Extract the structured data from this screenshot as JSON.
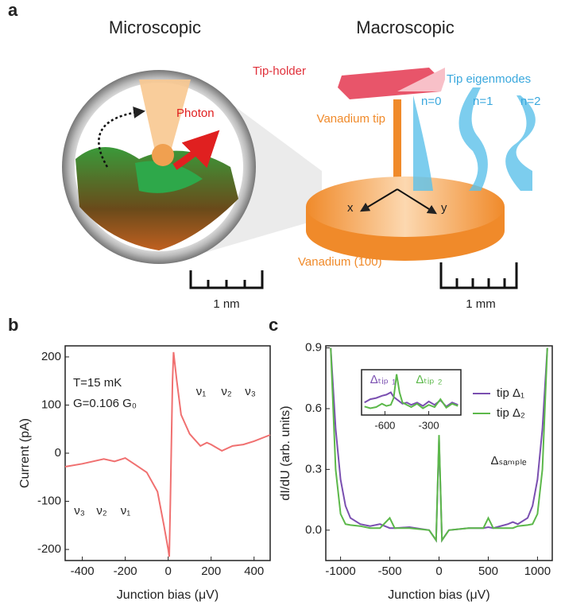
{
  "figure": {
    "panel_label": "a",
    "left_title": "Microscopic",
    "right_title": "Macroscopic",
    "tip_holder": "Tip-holder",
    "eigenmodes": "Tip eigenmodes",
    "modes": [
      "n=0",
      "n=1",
      "n=2"
    ],
    "tip": "Vanadium tip",
    "photon": "Photon",
    "axis_x": "x",
    "axis_y": "y",
    "sample": "Vanadium (100)",
    "scale_left": "1 nm",
    "scale_right": "1 mm"
  },
  "chart_data": [
    {
      "type": "line",
      "panel_label": "b",
      "xlabel": "Junction bias (μV)",
      "ylabel": "Current (pA)",
      "annotations": [
        "T=15 mK",
        "G=0.106 G₀",
        "ν₃",
        "ν₂",
        "ν₁",
        "ν₁",
        "ν₂",
        "ν₃"
      ],
      "xlim": [
        -480,
        475
      ],
      "ylim": [
        -223,
        223
      ],
      "xticks": [
        -400,
        -200,
        0,
        200,
        400
      ],
      "yticks": [
        -200,
        -100,
        0,
        100,
        200
      ],
      "x": [
        -480,
        -400,
        -300,
        -250,
        -200,
        -150,
        -100,
        -50,
        -20,
        0,
        5,
        10,
        20,
        25,
        40,
        60,
        100,
        150,
        180,
        200,
        250,
        300,
        350,
        400,
        475
      ],
      "values": [
        -28,
        -22,
        -12,
        -17,
        -10,
        -25,
        -40,
        -80,
        -150,
        -200,
        -215,
        -100,
        150,
        210,
        150,
        80,
        40,
        15,
        22,
        18,
        5,
        15,
        18,
        25,
        38
      ],
      "color": "#f07070"
    },
    {
      "type": "line",
      "panel_label": "c",
      "xlabel": "Junction bias (μV)",
      "ylabel": "dI/dU (arb. units)",
      "annotations": [
        "Δₛₐₘₚₗₑ"
      ],
      "legend": "upper right",
      "xlim": [
        -1150,
        1150
      ],
      "ylim": [
        -0.15,
        0.91
      ],
      "xticks": [
        -1000,
        -500,
        0,
        500,
        1000
      ],
      "yticks": [
        {
          "value": 0,
          "label": "0.0"
        },
        0.3,
        0.6,
        0.9
      ],
      "x": [
        -1100,
        -1050,
        -1000,
        -950,
        -900,
        -800,
        -700,
        -600,
        -500,
        -450,
        -300,
        -100,
        -30,
        0,
        30,
        100,
        300,
        450,
        500,
        550,
        700,
        750,
        800,
        900,
        950,
        1000,
        1050,
        1100
      ],
      "series": [
        {
          "name": "tip Δ₁",
          "color": "#7a4fb0",
          "values": [
            0.9,
            0.5,
            0.25,
            0.12,
            0.06,
            0.03,
            0.02,
            0.03,
            0.01,
            0.01,
            0.015,
            0.0,
            -0.05,
            0.45,
            -0.05,
            0.0,
            0.01,
            0.01,
            0.015,
            0.01,
            0.03,
            0.04,
            0.03,
            0.06,
            0.12,
            0.25,
            0.5,
            0.9
          ]
        },
        {
          "name": "tip Δ₂",
          "color": "#5cb84a",
          "values": [
            0.9,
            0.3,
            0.08,
            0.03,
            0.025,
            0.02,
            0.01,
            0.01,
            0.06,
            0.01,
            0.01,
            0.0,
            -0.05,
            0.47,
            -0.05,
            0.0,
            0.01,
            0.01,
            0.06,
            0.01,
            0.01,
            0.01,
            0.02,
            0.025,
            0.03,
            0.08,
            0.3,
            0.9
          ]
        }
      ]
    },
    {
      "type": "line",
      "annotations": [
        "Δₜᵢₚ ₁",
        "Δₜᵢₚ ₂"
      ],
      "xlim": [
        -760,
        -80
      ],
      "ylim": [
        -0.01,
        0.07
      ],
      "xticks": [
        -600,
        -300
      ],
      "x": [
        -740,
        -700,
        -660,
        -620,
        -590,
        -560,
        -540,
        -520,
        -500,
        -480,
        -450,
        -420,
        -380,
        -340,
        -300,
        -260,
        -220,
        -180,
        -140,
        -100
      ],
      "series": [
        {
          "name": "tip Δ₁",
          "color": "#7a4fb0",
          "values": [
            0.012,
            0.018,
            0.02,
            0.024,
            0.026,
            0.03,
            0.022,
            0.018,
            0.014,
            0.01,
            0.012,
            0.008,
            0.012,
            0.006,
            0.014,
            0.008,
            0.016,
            0.005,
            0.012,
            0.008
          ]
        },
        {
          "name": "tip Δ₂",
          "color": "#5cb84a",
          "values": [
            0.005,
            0.002,
            0.004,
            0.01,
            0.006,
            0.008,
            0.02,
            0.062,
            0.03,
            0.012,
            0.008,
            0.004,
            0.01,
            0.002,
            0.008,
            0.004,
            0.018,
            0.003,
            0.01,
            0.006
          ]
        }
      ]
    }
  ]
}
